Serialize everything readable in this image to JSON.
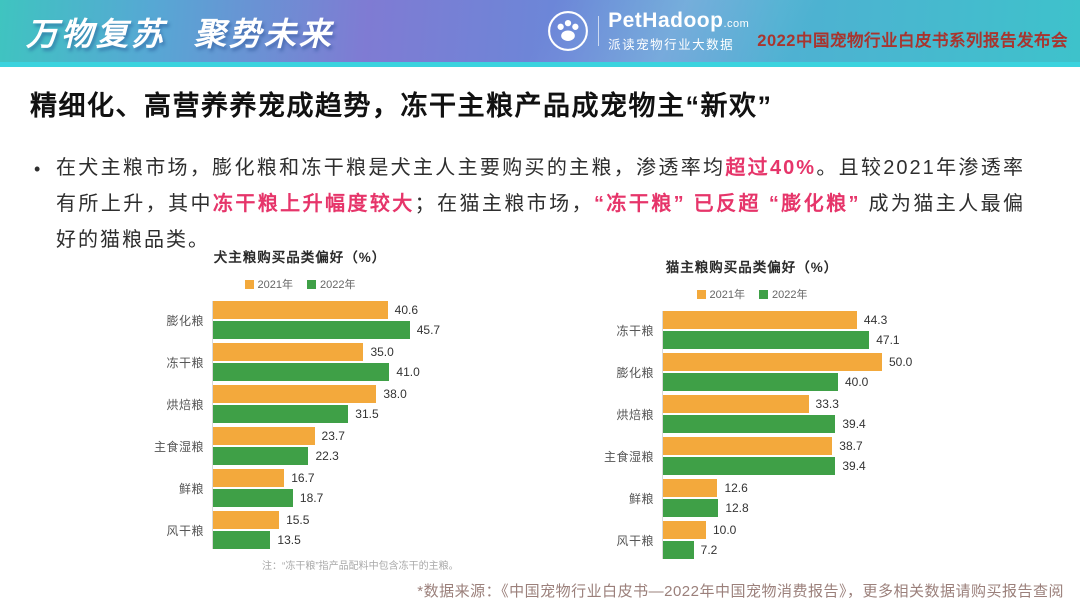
{
  "header": {
    "slogan": "万物复苏 聚势未来",
    "brand": "PetHadoop",
    "brand_suffix": ".com",
    "brand_sub": "派读宠物行业大数据",
    "event": "2022中国宠物行业白皮书系列报告发布会"
  },
  "title": "精细化、高营养养宠成趋势，冻干主粮产品成宠物主“新欢”",
  "paragraph": {
    "bullet": "•",
    "segments": [
      {
        "text": "在犬主粮市场，膨化粮和冻干粮是犬主人主要购买的主粮，渗透率均",
        "em": false
      },
      {
        "text": "超过40%",
        "em": true
      },
      {
        "text": "。且较2021年渗透率有所上升，其中",
        "em": false
      },
      {
        "text": "冻干粮上升幅度较大",
        "em": true
      },
      {
        "text": "；在猫主粮市场，",
        "em": false
      },
      {
        "text": "“冻干粮” 已反超 “膨化粮”",
        "em": true
      },
      {
        "text": " 成为猫主人最偏好的猫粮品类。",
        "em": false
      }
    ]
  },
  "chart_data": [
    {
      "type": "bar",
      "orientation": "horizontal",
      "title": "犬主粮购买品类偏好（%）",
      "categories": [
        "膨化粮",
        "冻干粮",
        "烘焙粮",
        "主食湿粮",
        "鲜粮",
        "风干粮"
      ],
      "series": [
        {
          "name": "2021年",
          "color": "#F3A93C",
          "values": [
            40.6,
            35.0,
            38.0,
            23.7,
            16.7,
            15.5
          ],
          "labels": [
            "40.6",
            "35.0",
            "38.0",
            "23.7",
            "16.7",
            "15.5"
          ]
        },
        {
          "name": "2022年",
          "color": "#3FA047",
          "values": [
            45.7,
            41.0,
            31.5,
            22.3,
            18.7,
            13.5
          ],
          "labels": [
            "45.7",
            "41.0",
            "31.5",
            "22.3",
            "18.7",
            "13.5"
          ]
        }
      ],
      "xlim": [
        0,
        55
      ],
      "legend_position": "top",
      "grid": false,
      "note": "注：“冻干粮”指产品配料中包含冻干的主粮。"
    },
    {
      "type": "bar",
      "orientation": "horizontal",
      "title": "猫主粮购买品类偏好（%）",
      "categories": [
        "冻干粮",
        "膨化粮",
        "烘焙粮",
        "主食湿粮",
        "鲜粮",
        "风干粮"
      ],
      "series": [
        {
          "name": "2021年",
          "color": "#F3A93C",
          "values": [
            44.3,
            50.0,
            33.3,
            38.7,
            12.6,
            10.0
          ],
          "labels": [
            "44.3",
            "50.0",
            "33.3",
            "38.7",
            "12.6",
            "10.0"
          ]
        },
        {
          "name": "2022年",
          "color": "#3FA047",
          "values": [
            47.1,
            40.0,
            39.4,
            39.4,
            12.8,
            7.2
          ],
          "labels": [
            "47.1",
            "40.0",
            "39.4",
            "39.4",
            "12.8",
            "7.2"
          ]
        }
      ],
      "xlim": [
        0,
        55
      ],
      "legend_position": "top",
      "grid": false,
      "note": ""
    }
  ],
  "footer": {
    "source": "*数据来源：《中国宠物行业白皮书—2022年中国宠物消费报告》，更多相关数据请购买报告查阅"
  },
  "colors": {
    "accent_red": "#E6356A",
    "event_red": "#A8352F",
    "bar_2021": "#F3A93C",
    "bar_2022": "#3FA047",
    "strip_cyan": "#3BD3DE",
    "source_text": "#9B807B"
  }
}
